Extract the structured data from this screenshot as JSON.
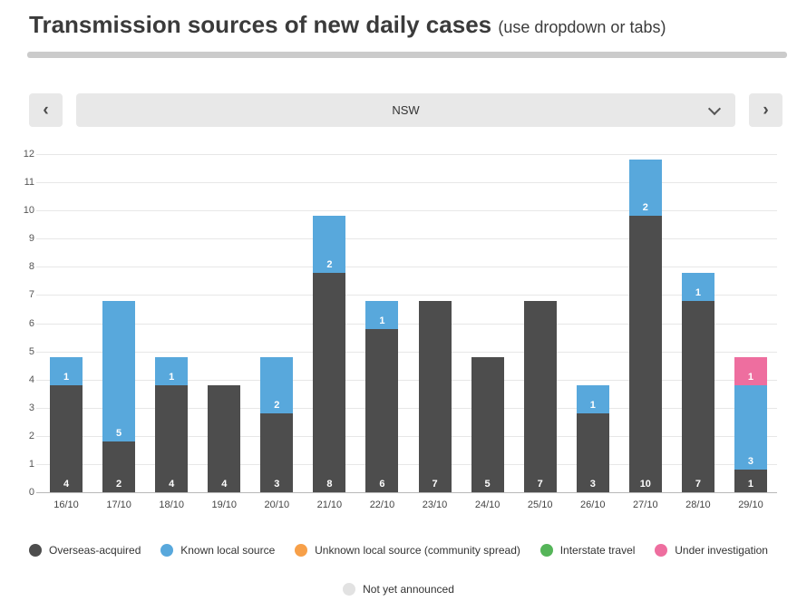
{
  "page": {
    "title": "Transmission sources of new daily cases",
    "title_suffix": "(use dropdown or tabs)"
  },
  "nav": {
    "prev_label": "‹",
    "next_label": "›",
    "dropdown_value": "NSW"
  },
  "chart_data": {
    "type": "bar",
    "stacked": true,
    "categories": [
      "16/10",
      "17/10",
      "18/10",
      "19/10",
      "20/10",
      "21/10",
      "22/10",
      "23/10",
      "24/10",
      "25/10",
      "26/10",
      "27/10",
      "28/10",
      "29/10"
    ],
    "series": [
      {
        "name": "Overseas-acquired",
        "color": "#4d4d4d",
        "values": [
          4,
          2,
          4,
          4,
          3,
          8,
          6,
          7,
          5,
          7,
          3,
          10,
          7,
          1
        ]
      },
      {
        "name": "Known local source",
        "color": "#58a8dc",
        "values": [
          1,
          5,
          1,
          0,
          2,
          2,
          1,
          0,
          0,
          0,
          1,
          2,
          1,
          3
        ]
      },
      {
        "name": "Unknown local source (community spread)",
        "color": "#f7a049",
        "values": [
          0,
          0,
          0,
          0,
          0,
          0,
          0,
          0,
          0,
          0,
          0,
          0,
          0,
          0
        ]
      },
      {
        "name": "Interstate travel",
        "color": "#55b559",
        "values": [
          0,
          0,
          0,
          0,
          0,
          0,
          0,
          0,
          0,
          0,
          0,
          0,
          0,
          0
        ]
      },
      {
        "name": "Under investigation",
        "color": "#ee6e9f",
        "values": [
          0,
          0,
          0,
          0,
          0,
          0,
          0,
          0,
          0,
          0,
          0,
          0,
          0,
          1
        ]
      },
      {
        "name": "Not yet announced",
        "color": "#e2e2e2",
        "values": [
          0,
          0,
          0,
          0,
          0,
          0,
          0,
          0,
          0,
          0,
          0,
          0,
          0,
          0
        ]
      }
    ],
    "ylim": [
      0,
      12
    ],
    "yticks": [
      0,
      1,
      2,
      3,
      4,
      5,
      6,
      7,
      8,
      9,
      10,
      11,
      12
    ],
    "grid": true,
    "legend_position": "bottom"
  }
}
